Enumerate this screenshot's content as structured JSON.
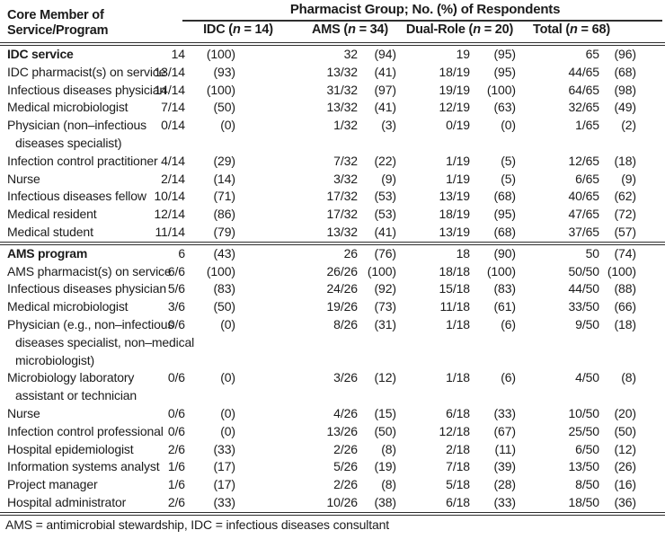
{
  "header": {
    "stub_lines": [
      "Core Member of",
      "Service/Program"
    ],
    "spanner": "Pharmacist Group; No. (%) of Respondents",
    "groups": [
      {
        "pre": "IDC (",
        "n": "n",
        "post": " = 14)"
      },
      {
        "pre": "AMS (",
        "n": "n",
        "post": " = 34)"
      },
      {
        "pre": "Dual-Role (",
        "n": "n",
        "post": " = 20)"
      },
      {
        "pre": "Total (",
        "n": "n",
        "post": " = 68)"
      }
    ]
  },
  "sections": [
    {
      "title": "IDC service",
      "values": [
        "14",
        "(100)",
        "32",
        "(94)",
        "19",
        "(95)",
        "65",
        "(96)"
      ],
      "rows": [
        {
          "label_lines": [
            "IDC pharmacist(s) on service"
          ],
          "values": [
            "13/14",
            "(93)",
            "13/32",
            "(41)",
            "18/19",
            "(95)",
            "44/65",
            "(68)"
          ]
        },
        {
          "label_lines": [
            "Infectious diseases physician"
          ],
          "values": [
            "14/14",
            "(100)",
            "31/32",
            "(97)",
            "19/19",
            "(100)",
            "64/65",
            "(98)"
          ]
        },
        {
          "label_lines": [
            "Medical microbiologist"
          ],
          "values": [
            "7/14",
            "(50)",
            "13/32",
            "(41)",
            "12/19",
            "(63)",
            "32/65",
            "(49)"
          ]
        },
        {
          "label_lines": [
            "Physician (non–infectious",
            "diseases specialist)"
          ],
          "values": [
            "0/14",
            "(0)",
            "1/32",
            "(3)",
            "0/19",
            "(0)",
            "1/65",
            "(2)"
          ]
        },
        {
          "label_lines": [
            "Infection control practitioner"
          ],
          "values": [
            "4/14",
            "(29)",
            "7/32",
            "(22)",
            "1/19",
            "(5)",
            "12/65",
            "(18)"
          ]
        },
        {
          "label_lines": [
            "Nurse"
          ],
          "values": [
            "2/14",
            "(14)",
            "3/32",
            "(9)",
            "1/19",
            "(5)",
            "6/65",
            "(9)"
          ]
        },
        {
          "label_lines": [
            "Infectious diseases fellow"
          ],
          "values": [
            "10/14",
            "(71)",
            "17/32",
            "(53)",
            "13/19",
            "(68)",
            "40/65",
            "(62)"
          ]
        },
        {
          "label_lines": [
            "Medical resident"
          ],
          "values": [
            "12/14",
            "(86)",
            "17/32",
            "(53)",
            "18/19",
            "(95)",
            "47/65",
            "(72)"
          ]
        },
        {
          "label_lines": [
            "Medical student"
          ],
          "values": [
            "11/14",
            "(79)",
            "13/32",
            "(41)",
            "13/19",
            "(68)",
            "37/65",
            "(57)"
          ]
        }
      ]
    },
    {
      "title": "AMS program",
      "values": [
        "6",
        "(43)",
        "26",
        "(76)",
        "18",
        "(90)",
        "50",
        "(74)"
      ],
      "rows": [
        {
          "label_lines": [
            "AMS pharmacist(s) on service"
          ],
          "values": [
            "6/6",
            "(100)",
            "26/26",
            "(100)",
            "18/18",
            "(100)",
            "50/50",
            "(100)"
          ]
        },
        {
          "label_lines": [
            "Infectious diseases physician"
          ],
          "values": [
            "5/6",
            "(83)",
            "24/26",
            "(92)",
            "15/18",
            "(83)",
            "44/50",
            "(88)"
          ]
        },
        {
          "label_lines": [
            "Medical microbiologist"
          ],
          "values": [
            "3/6",
            "(50)",
            "19/26",
            "(73)",
            "11/18",
            "(61)",
            "33/50",
            "(66)"
          ]
        },
        {
          "label_lines": [
            "Physician (e.g., non–infectious",
            "diseases specialist, non–medical",
            "microbiologist)"
          ],
          "values": [
            "0/6",
            "(0)",
            "8/26",
            "(31)",
            "1/18",
            "(6)",
            "9/50",
            "(18)"
          ]
        },
        {
          "label_lines": [
            "Microbiology laboratory",
            "assistant or technician"
          ],
          "values": [
            "0/6",
            "(0)",
            "3/26",
            "(12)",
            "1/18",
            "(6)",
            "4/50",
            "(8)"
          ]
        },
        {
          "label_lines": [
            "Nurse"
          ],
          "values": [
            "0/6",
            "(0)",
            "4/26",
            "(15)",
            "6/18",
            "(33)",
            "10/50",
            "(20)"
          ]
        },
        {
          "label_lines": [
            "Infection control professional"
          ],
          "values": [
            "0/6",
            "(0)",
            "13/26",
            "(50)",
            "12/18",
            "(67)",
            "25/50",
            "(50)"
          ]
        },
        {
          "label_lines": [
            "Hospital epidemiologist"
          ],
          "values": [
            "2/6",
            "(33)",
            "2/26",
            "(8)",
            "2/18",
            "(11)",
            "6/50",
            "(12)"
          ]
        },
        {
          "label_lines": [
            "Information systems analyst"
          ],
          "values": [
            "1/6",
            "(17)",
            "5/26",
            "(19)",
            "7/18",
            "(39)",
            "13/50",
            "(26)"
          ]
        },
        {
          "label_lines": [
            "Project manager"
          ],
          "values": [
            "1/6",
            "(17)",
            "2/26",
            "(8)",
            "5/18",
            "(28)",
            "8/50",
            "(16)"
          ]
        },
        {
          "label_lines": [
            "Hospital administrator"
          ],
          "values": [
            "2/6",
            "(33)",
            "10/26",
            "(38)",
            "6/18",
            "(33)",
            "18/50",
            "(36)"
          ]
        }
      ]
    }
  ],
  "footnote": "AMS = antimicrobial stewardship, IDC = infectious diseases consultant",
  "colors": {
    "text": "#1b1b1b",
    "rule": "#2e2e2e",
    "background": "#ffffff"
  }
}
